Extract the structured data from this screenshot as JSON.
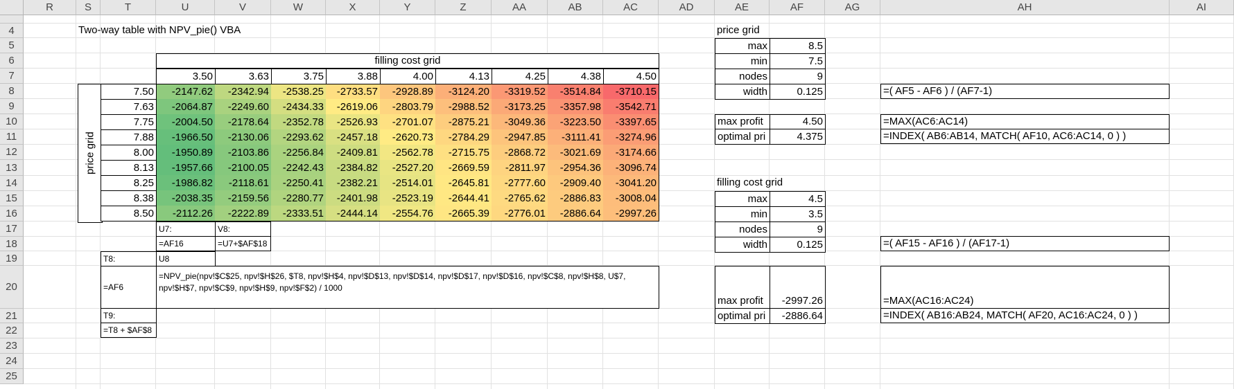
{
  "sheet": {
    "columns": [
      "R",
      "S",
      "T",
      "U",
      "V",
      "W",
      "X",
      "Y",
      "Z",
      "AA",
      "AB",
      "AC",
      "AD",
      "AE",
      "AF",
      "AG",
      "AH",
      "AI"
    ],
    "rows": [
      "4",
      "5",
      "6",
      "7",
      "8",
      "9",
      "10",
      "11",
      "12",
      "13",
      "14",
      "15",
      "16",
      "17",
      "18",
      "19",
      "20",
      "21",
      "22",
      "23",
      "24",
      "25"
    ]
  },
  "two_way": {
    "title": "Two-way table with NPV_pie() VBA",
    "col_label": "filling cost grid",
    "row_label": "price grid",
    "col_headers": [
      "3.50",
      "3.63",
      "3.75",
      "3.88",
      "4.00",
      "4.13",
      "4.25",
      "4.38",
      "4.50"
    ],
    "row_headers": [
      "7.50",
      "7.63",
      "7.75",
      "7.88",
      "8.00",
      "8.13",
      "8.25",
      "8.38",
      "8.50"
    ],
    "cells": [
      [
        "-2147.62",
        "-2342.94",
        "-2538.25",
        "-2733.57",
        "-2928.89",
        "-3124.20",
        "-3319.52",
        "-3514.84",
        "-3710.15"
      ],
      [
        "-2064.87",
        "-2249.60",
        "-2434.33",
        "-2619.06",
        "-2803.79",
        "-2988.52",
        "-3173.25",
        "-3357.98",
        "-3542.71"
      ],
      [
        "-2004.50",
        "-2178.64",
        "-2352.78",
        "-2526.93",
        "-2701.07",
        "-2875.21",
        "-3049.36",
        "-3223.50",
        "-3397.65"
      ],
      [
        "-1966.50",
        "-2130.06",
        "-2293.62",
        "-2457.18",
        "-2620.73",
        "-2784.29",
        "-2947.85",
        "-3111.41",
        "-3274.96"
      ],
      [
        "-1950.89",
        "-2103.86",
        "-2256.84",
        "-2409.81",
        "-2562.78",
        "-2715.75",
        "-2868.72",
        "-3021.69",
        "-3174.66"
      ],
      [
        "-1957.66",
        "-2100.05",
        "-2242.43",
        "-2384.82",
        "-2527.20",
        "-2669.59",
        "-2811.97",
        "-2954.36",
        "-3096.74"
      ],
      [
        "-1986.82",
        "-2118.61",
        "-2250.41",
        "-2382.21",
        "-2514.01",
        "-2645.81",
        "-2777.60",
        "-2909.40",
        "-3041.20"
      ],
      [
        "-2038.35",
        "-2159.56",
        "-2280.77",
        "-2401.98",
        "-2523.19",
        "-2644.41",
        "-2765.62",
        "-2886.83",
        "-3008.04"
      ],
      [
        "-2112.26",
        "-2222.89",
        "-2333.51",
        "-2444.14",
        "-2554.76",
        "-2665.39",
        "-2776.01",
        "-2886.64",
        "-2997.26"
      ]
    ],
    "colors": {
      "high": "#63be7b",
      "mid": "#ffeb84",
      "low": "#f8696b"
    }
  },
  "notes": {
    "u7_label": "U7:",
    "v8_label": "V8:",
    "u7_formula": "=AF16",
    "v8_formula": "=U7+$AF$18",
    "t8_label": "T8:",
    "u8_label": "U8",
    "t8_formula": "=AF6",
    "u8_formula": "=NPV_pie(npv!$C$25, npv!$H$26, $T8, npv!$H$4, npv!$D$13, npv!$D$14, npv!$D$17, npv!$D$16, npv!$C$8, npv!$H$8,  U$7, npv!$H$7, npv!$C$9, npv!$H$9, npv!$F$2) / 1000",
    "t9_label": "T9:",
    "t9_formula": "=T8 + $AF$8"
  },
  "price_grid": {
    "title": "price grid",
    "labels": [
      "max",
      "min",
      "nodes",
      "width"
    ],
    "values": [
      "8.5",
      "7.5",
      "9",
      "0.125"
    ],
    "width_formula": "=( AF5 - AF6 ) / (AF7-1)"
  },
  "results1": {
    "labels": [
      "max profit",
      "optimal pri"
    ],
    "values": [
      "4.50",
      "4.375"
    ],
    "formulas": [
      "=MAX(AC6:AC14)",
      "=INDEX( AB6:AB14, MATCH( AF10, AC6:AC14, 0 ) )"
    ]
  },
  "fill_grid": {
    "title": "filling cost grid",
    "labels": [
      "max",
      "min",
      "nodes",
      "width"
    ],
    "values": [
      "4.5",
      "3.5",
      "9",
      "0.125"
    ],
    "width_formula": "=( AF15 - AF16 ) / (AF17-1)"
  },
  "results2": {
    "labels": [
      "max profit",
      "optimal pri"
    ],
    "values": [
      "-2997.26",
      "-2886.64"
    ],
    "formulas": [
      "=MAX(AC16:AC24)",
      "=INDEX( AB16:AB24, MATCH( AF20, AC16:AC24, 0 ) )"
    ]
  }
}
